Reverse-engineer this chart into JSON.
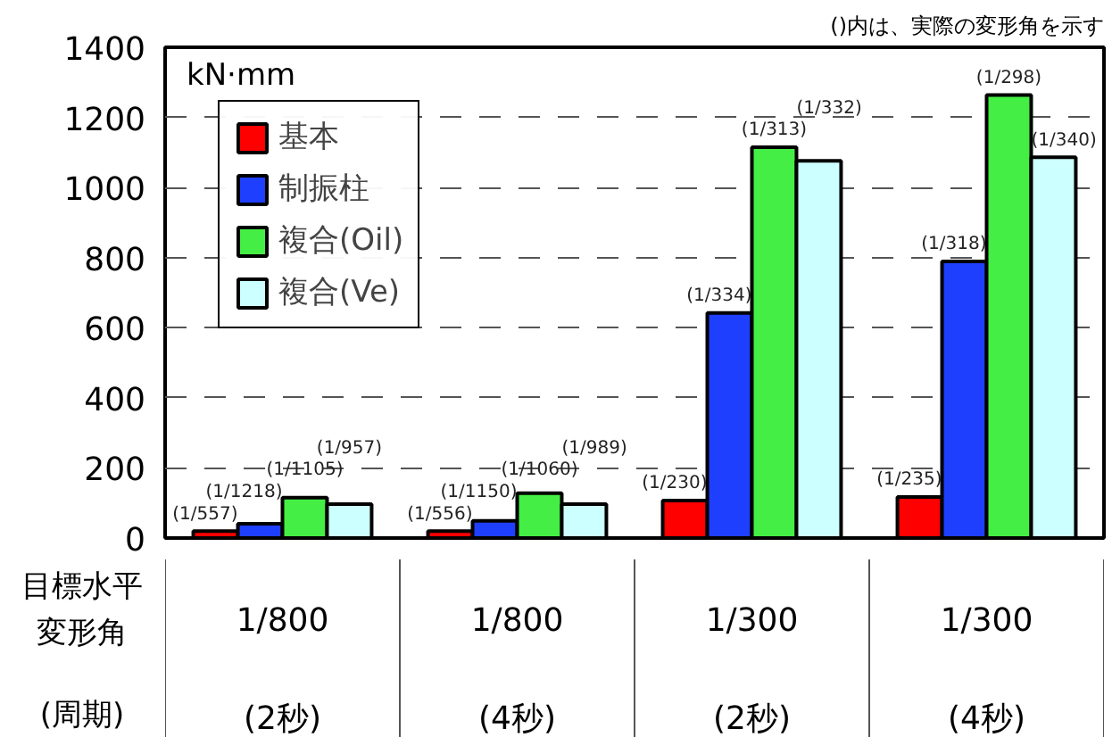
{
  "chart_data": {
    "type": "bar",
    "categories": [
      "1/800\n(2秒)",
      "1/800\n(4秒)",
      "1/300\n(2秒)",
      "1/300\n(4秒)"
    ],
    "series": [
      {
        "name": "基本",
        "color": "#ff0000",
        "values": [
          20,
          20,
          107,
          117
        ],
        "value_labels": [
          "(1/557)",
          "(1/556)",
          "(1/230)",
          "(1/235)"
        ]
      },
      {
        "name": "制振柱",
        "color": "#1f3fff",
        "values": [
          41,
          49,
          642,
          789
        ],
        "value_labels": [
          "(1/1218)",
          "(1/1150)",
          "(1/334)",
          "(1/318)"
        ]
      },
      {
        "name": "複合(Oil)",
        "color": "#44ee44",
        "values": [
          115,
          128,
          1115,
          1264
        ],
        "value_labels": [
          "(1/1105)",
          "(1/1060)",
          "(1/313)",
          "(1/298)"
        ]
      },
      {
        "name": "複合(Ve)",
        "color": "#ccffff",
        "values": [
          97,
          97,
          1076,
          1086
        ],
        "value_labels": [
          "(1/957)",
          "(1/989)",
          "(1/332)",
          "(1/340)"
        ]
      }
    ],
    "ylim": [
      0,
      1400
    ],
    "yticks": [
      0,
      200,
      400,
      600,
      800,
      1000,
      1200,
      1400
    ],
    "grid": "y",
    "legend": "top left",
    "annotations": [
      "kN·mm",
      "()内は、実際の変形角を示す",
      "目標水平",
      "変形角",
      "(周期)"
    ]
  }
}
